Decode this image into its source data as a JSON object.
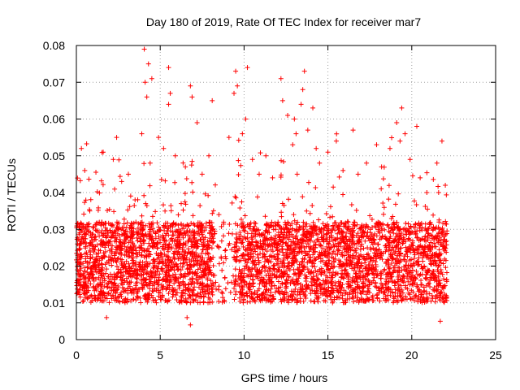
{
  "chart_data": {
    "type": "scatter",
    "title": "Day 180 of 2019, Rate Of TEC Index for receiver mar7",
    "xlabel": "GPS time / hours",
    "ylabel": "ROTI / TECUs",
    "xlim": [
      0,
      25
    ],
    "ylim": [
      0,
      0.08
    ],
    "xticks": [
      0,
      5,
      10,
      15,
      20,
      25
    ],
    "yticks": [
      0,
      0.01,
      0.02,
      0.03,
      0.04,
      0.05,
      0.06,
      0.07,
      0.08
    ],
    "xtick_labels": [
      "0",
      "5",
      "10",
      "15",
      "20",
      "25"
    ],
    "ytick_labels": [
      "0",
      "0.01",
      "0.02",
      "0.03",
      "0.04",
      "0.05",
      "0.06",
      "0.07",
      "0.08"
    ],
    "grid": true,
    "marker": "+",
    "color": "#ff0000",
    "data_x_range": [
      0,
      22.1
    ],
    "series": [
      {
        "name": "ROTI",
        "points": [
          [
            0.1,
            0.013
          ],
          [
            0.3,
            0.052
          ],
          [
            0.5,
            0.046
          ],
          [
            0.8,
            0.035
          ],
          [
            1.2,
            0.022
          ],
          [
            1.6,
            0.051
          ],
          [
            1.8,
            0.006
          ],
          [
            2.2,
            0.049
          ],
          [
            2.4,
            0.055
          ],
          [
            2.7,
            0.043
          ],
          [
            3.1,
            0.045
          ],
          [
            3.5,
            0.038
          ],
          [
            3.9,
            0.056
          ],
          [
            4.05,
            0.079
          ],
          [
            4.1,
            0.07
          ],
          [
            4.2,
            0.066
          ],
          [
            4.3,
            0.075
          ],
          [
            4.5,
            0.071
          ],
          [
            4.4,
            0.048
          ],
          [
            4.9,
            0.055
          ],
          [
            5.2,
            0.052
          ],
          [
            5.5,
            0.074
          ],
          [
            5.6,
            0.067
          ],
          [
            5.5,
            0.064
          ],
          [
            5.9,
            0.05
          ],
          [
            6.5,
            0.047
          ],
          [
            6.8,
            0.069
          ],
          [
            6.9,
            0.066
          ],
          [
            6.6,
            0.006
          ],
          [
            6.8,
            0.004
          ],
          [
            7.2,
            0.059
          ],
          [
            7.5,
            0.045
          ],
          [
            7.9,
            0.05
          ],
          [
            8.1,
            0.065
          ],
          [
            8.5,
            0.034
          ],
          [
            9.1,
            0.055
          ],
          [
            9.5,
            0.073
          ],
          [
            9.6,
            0.069
          ],
          [
            9.4,
            0.067
          ],
          [
            9.9,
            0.056
          ],
          [
            10.2,
            0.074
          ],
          [
            10.1,
            0.06
          ],
          [
            10.5,
            0.049
          ],
          [
            10.9,
            0.045
          ],
          [
            11.3,
            0.05
          ],
          [
            11.7,
            0.044
          ],
          [
            12.2,
            0.071
          ],
          [
            12.3,
            0.065
          ],
          [
            12.6,
            0.061
          ],
          [
            12.9,
            0.053
          ],
          [
            13.0,
            0.06
          ],
          [
            13.1,
            0.056
          ],
          [
            13.6,
            0.073
          ],
          [
            13.5,
            0.068
          ],
          [
            13.4,
            0.064
          ],
          [
            13.8,
            0.057
          ],
          [
            14.1,
            0.063
          ],
          [
            14.3,
            0.052
          ],
          [
            14.5,
            0.048
          ],
          [
            15.0,
            0.051
          ],
          [
            15.5,
            0.054
          ],
          [
            15.9,
            0.046
          ],
          [
            16.5,
            0.057
          ],
          [
            16.8,
            0.045
          ],
          [
            17.3,
            0.048
          ],
          [
            17.9,
            0.053
          ],
          [
            18.2,
            0.047
          ],
          [
            18.7,
            0.052
          ],
          [
            19.1,
            0.059
          ],
          [
            19.4,
            0.063
          ],
          [
            19.6,
            0.056
          ],
          [
            19.3,
            0.054
          ],
          [
            19.9,
            0.049
          ],
          [
            20.3,
            0.058
          ],
          [
            20.5,
            0.044
          ],
          [
            20.9,
            0.04
          ],
          [
            21.5,
            0.048
          ],
          [
            21.6,
            0.04
          ],
          [
            21.8,
            0.054
          ],
          [
            21.7,
            0.005
          ],
          [
            22.0,
            0.042
          ]
        ]
      }
    ]
  }
}
